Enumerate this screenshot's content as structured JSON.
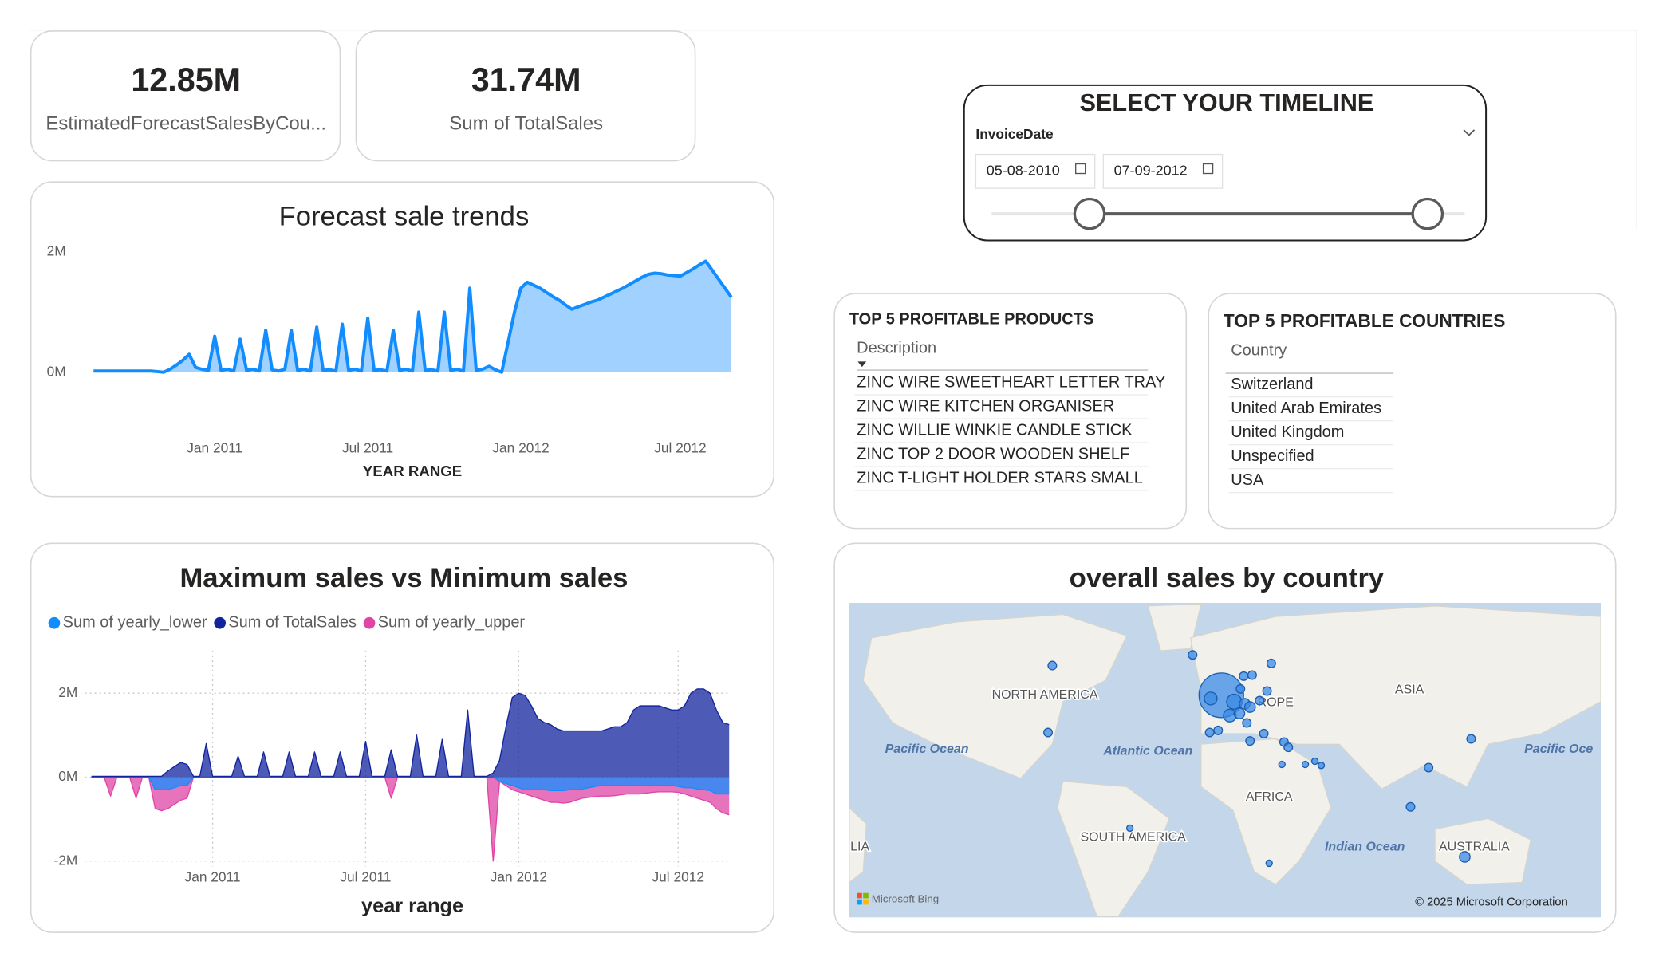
{
  "cards": [
    {
      "value": "12.85M",
      "label": "EstimatedForecastSalesByCou..."
    },
    {
      "value": "31.74M",
      "label": "Sum of TotalSales"
    }
  ],
  "slicer": {
    "title": "SELECT YOUR TIMELINE",
    "field": "InvoiceDate",
    "start": "05-08-2010",
    "end": "07-09-2012"
  },
  "products": {
    "title": "TOP 5 PROFITABLE PRODUCTS",
    "column": "Description",
    "rows": [
      "ZINC WIRE SWEETHEART LETTER TRAY",
      "ZINC WIRE KITCHEN ORGANISER",
      "ZINC WILLIE WINKIE CANDLE STICK",
      "ZINC TOP 2 DOOR WOODEN SHELF",
      "ZINC T-LIGHT HOLDER STARS SMALL"
    ]
  },
  "countries": {
    "title": "TOP 5 PROFITABLE COUNTRIES",
    "column": "Country",
    "rows": [
      "Switzerland",
      "United Arab Emirates",
      "United Kingdom",
      "Unspecified",
      "USA"
    ]
  },
  "chart_data": [
    {
      "type": "area",
      "title": "Forecast sale trends",
      "x_label": "YEAR RANGE",
      "color": "#118dff",
      "grid": false,
      "categories": [
        null,
        null,
        null,
        null,
        null,
        null,
        null,
        null,
        null,
        null,
        null,
        null,
        null,
        null,
        null,
        null,
        null,
        null,
        null,
        "Jan 2011",
        null,
        null,
        null,
        null,
        null,
        null,
        null,
        null,
        null,
        null,
        null,
        null,
        null,
        null,
        null,
        null,
        null,
        null,
        null,
        null,
        null,
        null,
        null,
        "Jul 2011",
        null,
        null,
        null,
        null,
        null,
        null,
        null,
        null,
        null,
        null,
        null,
        null,
        null,
        null,
        null,
        null,
        null,
        null,
        null,
        null,
        null,
        null,
        null,
        "Jan 2012",
        null,
        null,
        null,
        null,
        null,
        null,
        null,
        null,
        null,
        null,
        null,
        null,
        null,
        null,
        null,
        null,
        null,
        null,
        null,
        null,
        null,
        null,
        null,
        null,
        "Jul 2012",
        null,
        null,
        null,
        null,
        null,
        null,
        null,
        null
      ],
      "values": [
        0.02,
        0.02,
        0.02,
        0.02,
        0.02,
        0.02,
        0.02,
        0.02,
        0.02,
        0.02,
        0.01,
        0,
        0.05,
        0.12,
        0.2,
        0.3,
        0.08,
        0.05,
        0.03,
        0.6,
        0.03,
        0.05,
        0.02,
        0.55,
        0.03,
        0.05,
        0.02,
        0.7,
        0.04,
        0.02,
        0.05,
        0.7,
        0.03,
        0.05,
        0.02,
        0.75,
        0.03,
        0.04,
        0.02,
        0.8,
        0.03,
        0.05,
        0.02,
        0.9,
        0.03,
        0.04,
        0.02,
        0.7,
        0.03,
        0.05,
        0.02,
        1.0,
        0.03,
        0.04,
        0.02,
        1.0,
        0.03,
        0.05,
        0.02,
        1.4,
        0.03,
        0.05,
        0.1,
        0.04,
        0,
        0.5,
        1.0,
        1.4,
        1.5,
        1.45,
        1.4,
        1.33,
        1.26,
        1.2,
        1.12,
        1.05,
        1.09,
        1.13,
        1.17,
        1.2,
        1.25,
        1.3,
        1.35,
        1.4,
        1.46,
        1.52,
        1.58,
        1.63,
        1.65,
        1.64,
        1.62,
        1.61,
        1.6,
        1.66,
        1.72,
        1.79,
        1.85,
        1.7,
        1.55,
        1.4,
        1.25
      ],
      "ylim": [
        0,
        2
      ],
      "yticks": [
        {
          "value": 0,
          "label": "0M"
        },
        {
          "value": 2,
          "label": "2M"
        }
      ]
    },
    {
      "type": "area",
      "title": "Maximum sales vs Minimum sales",
      "x_label": "year range",
      "grid": true,
      "legend": "top-left",
      "categories": [
        null,
        null,
        null,
        null,
        null,
        null,
        null,
        null,
        null,
        null,
        null,
        null,
        null,
        null,
        null,
        null,
        null,
        null,
        null,
        "Jan 2011",
        null,
        null,
        null,
        null,
        null,
        null,
        null,
        null,
        null,
        null,
        null,
        null,
        null,
        null,
        null,
        null,
        null,
        null,
        null,
        null,
        null,
        null,
        null,
        "Jul 2011",
        null,
        null,
        null,
        null,
        null,
        null,
        null,
        null,
        null,
        null,
        null,
        null,
        null,
        null,
        null,
        null,
        null,
        null,
        null,
        null,
        null,
        null,
        null,
        "Jan 2012",
        null,
        null,
        null,
        null,
        null,
        null,
        null,
        null,
        null,
        null,
        null,
        null,
        null,
        null,
        null,
        null,
        null,
        null,
        null,
        null,
        null,
        null,
        null,
        null,
        "Jul 2012",
        null,
        null,
        null,
        null,
        null,
        null,
        null,
        null
      ],
      "series": [
        {
          "name": "Sum of yearly_lower",
          "color": "#118dff",
          "values": [
            0,
            0,
            0,
            0,
            0,
            0,
            0,
            0,
            0,
            0,
            -0.3,
            -0.3,
            -0.3,
            -0.25,
            -0.2,
            -0.2,
            0,
            0,
            0,
            0,
            0,
            0,
            0,
            0,
            0,
            0,
            0,
            0,
            0,
            0,
            0,
            0,
            0,
            0,
            0,
            0,
            0,
            0,
            0,
            0,
            0,
            0,
            0,
            0,
            0,
            0,
            0,
            0,
            0,
            0,
            0,
            0,
            0,
            0,
            0,
            0,
            0,
            0,
            0,
            0,
            0,
            0,
            0,
            0,
            -0.1,
            -0.15,
            -0.2,
            -0.25,
            -0.3,
            -0.3,
            -0.3,
            -0.3,
            -0.32,
            -0.32,
            -0.32,
            -0.3,
            -0.3,
            -0.28,
            -0.25,
            -0.22,
            -0.2,
            -0.2,
            -0.2,
            -0.2,
            -0.2,
            -0.2,
            -0.2,
            -0.2,
            -0.2,
            -0.2,
            -0.2,
            -0.2,
            -0.22,
            -0.25,
            -0.25,
            -0.28,
            -0.3,
            -0.32,
            -0.4,
            -0.4,
            -0.4
          ]
        },
        {
          "name": "Sum of TotalSales",
          "color": "#12239e",
          "values": [
            0.02,
            0.02,
            0.02,
            0.02,
            0.02,
            0.02,
            0.02,
            0.02,
            0.02,
            0.02,
            0.02,
            0.02,
            0.15,
            0.25,
            0.35,
            0.3,
            0.02,
            0.02,
            0.8,
            0.02,
            0.02,
            0.02,
            0.02,
            0.5,
            0.02,
            0.02,
            0.02,
            0.6,
            0.02,
            0.02,
            0.02,
            0.6,
            0.02,
            0.02,
            0.02,
            0.6,
            0.02,
            0.02,
            0.02,
            0.6,
            0.02,
            0.02,
            0.02,
            0.85,
            0.02,
            0.02,
            0.02,
            0.65,
            0.02,
            0.02,
            0.02,
            1.0,
            0.02,
            0.02,
            0.02,
            0.9,
            0.02,
            0.02,
            0.02,
            1.6,
            0.02,
            0.02,
            0.02,
            0.1,
            0.4,
            1.2,
            1.9,
            2.0,
            1.95,
            1.7,
            1.4,
            1.3,
            1.25,
            1.15,
            1.1,
            1.1,
            1.1,
            1.1,
            1.1,
            1.1,
            1.1,
            1.15,
            1.2,
            1.2,
            1.3,
            1.6,
            1.7,
            1.7,
            1.7,
            1.7,
            1.65,
            1.6,
            1.6,
            1.7,
            2.0,
            2.1,
            2.1,
            2.0,
            1.6,
            1.3,
            1.25
          ]
        },
        {
          "name": "Sum of yearly_upper",
          "color": "#e044a7",
          "values": [
            0,
            0,
            0,
            -0.45,
            0,
            0,
            0,
            -0.5,
            0,
            0,
            -0.75,
            -0.8,
            -0.75,
            -0.65,
            -0.55,
            -0.5,
            0,
            0,
            0,
            0,
            0,
            0,
            0,
            0,
            0,
            0,
            0,
            0,
            0,
            0,
            0,
            0,
            0,
            0,
            0,
            0,
            0,
            0,
            0,
            0,
            0,
            0,
            0,
            0,
            0,
            0,
            0,
            -0.5,
            0,
            0,
            0,
            0,
            0,
            0,
            0,
            0,
            0,
            0,
            0,
            0,
            0,
            0,
            0,
            -2.0,
            -0.1,
            -0.2,
            -0.3,
            -0.35,
            -0.4,
            -0.45,
            -0.5,
            -0.55,
            -0.6,
            -0.6,
            -0.62,
            -0.6,
            -0.55,
            -0.5,
            -0.48,
            -0.46,
            -0.45,
            -0.45,
            -0.44,
            -0.42,
            -0.4,
            -0.4,
            -0.4,
            -0.38,
            -0.36,
            -0.35,
            -0.35,
            -0.35,
            -0.36,
            -0.4,
            -0.45,
            -0.5,
            -0.55,
            -0.6,
            -0.75,
            -0.85,
            -0.9
          ]
        }
      ],
      "ylim": [
        -2,
        2
      ],
      "yticks": [
        {
          "value": -2,
          "label": "-2M"
        },
        {
          "value": 0,
          "label": "0M"
        },
        {
          "value": 2,
          "label": "2M"
        }
      ]
    }
  ],
  "map": {
    "title": "overall sales by country",
    "labels": [
      "NORTH AMERICA",
      "Pacific Ocean",
      "Atlantic Ocean",
      "ASIA",
      "Pacific Oce",
      "AFRICA",
      "SOUTH AMERICA",
      "Indian Ocean",
      "AUSTRALIA",
      "LIA",
      "ROPE"
    ],
    "attribution": "Microsoft Bing",
    "copyright": "© 2025 Microsoft Corporation"
  }
}
